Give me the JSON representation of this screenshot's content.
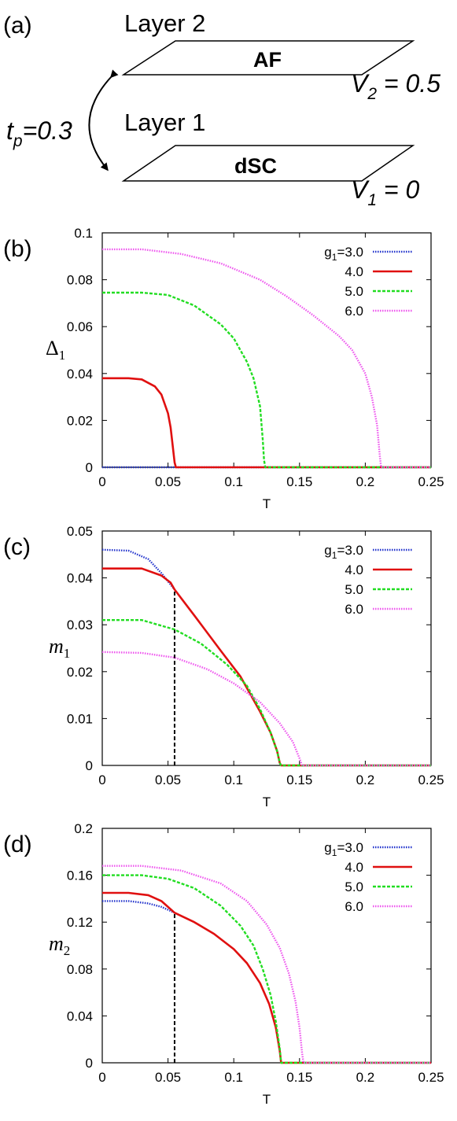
{
  "panel_a": {
    "panel_label": "(a)",
    "layer2_title": "Layer 2",
    "layer2_phase": "AF",
    "v2_var": "V",
    "v2_sub": "2",
    "v2_value": " = 0.5",
    "layer1_title": "Layer 1",
    "layer1_phase": "dSC",
    "v1_var": "V",
    "v1_sub": "1",
    "v1_value": " = 0",
    "tp_var": "t",
    "tp_sub": "p",
    "tp_value": "=0.3"
  },
  "colors": {
    "g3": "#2233cc",
    "g4": "#e01010",
    "g5": "#22dd22",
    "g6": "#ee55ee",
    "axis": "#000000",
    "dashed": "#000000"
  },
  "chart_data": [
    {
      "panel_label": "(b)",
      "type": "line",
      "ylabel_main": "Δ",
      "ylabel_sub": "1",
      "ylabel_style": "upright",
      "xlabel": "T",
      "xlim": [
        0,
        0.25
      ],
      "ylim": [
        0,
        0.1
      ],
      "xticks": [
        "0",
        "0.05",
        "0.1",
        "0.15",
        "0.2",
        "0.25"
      ],
      "yticks": [
        "0",
        "0.02",
        "0.04",
        "0.06",
        "0.08",
        "0.1"
      ],
      "legend_position": "top-right",
      "legend_prefix": "g",
      "legend_prefix_sub": "1",
      "dashed_line_x": null,
      "series": [
        {
          "name": "=3.0",
          "color_key": "g3",
          "style": "dotted",
          "points": [
            [
              0,
              0
            ],
            [
              0.25,
              0
            ]
          ]
        },
        {
          "name": "4.0",
          "color_key": "g4",
          "style": "solid",
          "points": [
            [
              0,
              0.038
            ],
            [
              0.02,
              0.038
            ],
            [
              0.03,
              0.0375
            ],
            [
              0.04,
              0.0345
            ],
            [
              0.045,
              0.031
            ],
            [
              0.05,
              0.023
            ],
            [
              0.052,
              0.017
            ],
            [
              0.054,
              0.007
            ],
            [
              0.055,
              0.002
            ],
            [
              0.056,
              0
            ],
            [
              0.25,
              0
            ]
          ]
        },
        {
          "name": "5.0",
          "color_key": "g5",
          "style": "dashed",
          "points": [
            [
              0,
              0.0745
            ],
            [
              0.03,
              0.0745
            ],
            [
              0.05,
              0.0735
            ],
            [
              0.07,
              0.069
            ],
            [
              0.09,
              0.061
            ],
            [
              0.1,
              0.055
            ],
            [
              0.11,
              0.045
            ],
            [
              0.115,
              0.038
            ],
            [
              0.12,
              0.026
            ],
            [
              0.122,
              0.012
            ],
            [
              0.123,
              0.003
            ],
            [
              0.124,
              0
            ],
            [
              0.25,
              0
            ]
          ]
        },
        {
          "name": "6.0",
          "color_key": "g6",
          "style": "dotted",
          "points": [
            [
              0,
              0.093
            ],
            [
              0.03,
              0.093
            ],
            [
              0.06,
              0.091
            ],
            [
              0.09,
              0.087
            ],
            [
              0.12,
              0.08
            ],
            [
              0.14,
              0.073
            ],
            [
              0.16,
              0.065
            ],
            [
              0.18,
              0.056
            ],
            [
              0.19,
              0.05
            ],
            [
              0.2,
              0.04
            ],
            [
              0.205,
              0.03
            ],
            [
              0.209,
              0.018
            ],
            [
              0.211,
              0.005
            ],
            [
              0.212,
              0
            ],
            [
              0.25,
              0
            ]
          ]
        }
      ]
    },
    {
      "panel_label": "(c)",
      "type": "line",
      "ylabel_main": "m",
      "ylabel_sub": "1",
      "ylabel_style": "italic",
      "xlabel": "T",
      "xlim": [
        0,
        0.25
      ],
      "ylim": [
        0,
        0.05
      ],
      "xticks": [
        "0",
        "0.05",
        "0.1",
        "0.15",
        "0.2",
        "0.25"
      ],
      "yticks": [
        "0",
        "0.01",
        "0.02",
        "0.03",
        "0.04",
        "0.05"
      ],
      "legend_position": "top-right",
      "legend_prefix": "g",
      "legend_prefix_sub": "1",
      "dashed_line_x": 0.055,
      "series": [
        {
          "name": "=3.0",
          "color_key": "g3",
          "style": "dotted",
          "points": [
            [
              0,
              0.046
            ],
            [
              0.02,
              0.0458
            ],
            [
              0.035,
              0.044
            ],
            [
              0.045,
              0.041
            ],
            [
              0.055,
              0.0375
            ]
          ]
        },
        {
          "name": "4.0",
          "color_key": "g4",
          "style": "solid",
          "points": [
            [
              0,
              0.042
            ],
            [
              0.03,
              0.042
            ],
            [
              0.045,
              0.0405
            ],
            [
              0.052,
              0.039
            ],
            [
              0.055,
              0.0375
            ],
            [
              0.07,
              0.032
            ],
            [
              0.09,
              0.0245
            ],
            [
              0.105,
              0.019
            ],
            [
              0.12,
              0.0115
            ],
            [
              0.128,
              0.007
            ],
            [
              0.133,
              0.003
            ],
            [
              0.135,
              0.0005
            ],
            [
              0.136,
              0
            ],
            [
              0.25,
              0
            ]
          ]
        },
        {
          "name": "5.0",
          "color_key": "g5",
          "style": "dashed",
          "points": [
            [
              0,
              0.031
            ],
            [
              0.03,
              0.031
            ],
            [
              0.055,
              0.029
            ],
            [
              0.075,
              0.026
            ],
            [
              0.095,
              0.0215
            ],
            [
              0.11,
              0.017
            ],
            [
              0.12,
              0.012
            ],
            [
              0.128,
              0.007
            ],
            [
              0.133,
              0.003
            ],
            [
              0.135,
              0.0005
            ],
            [
              0.136,
              0
            ],
            [
              0.25,
              0
            ]
          ]
        },
        {
          "name": "6.0",
          "color_key": "g6",
          "style": "dotted",
          "points": [
            [
              0,
              0.0242
            ],
            [
              0.03,
              0.024
            ],
            [
              0.055,
              0.023
            ],
            [
              0.08,
              0.0205
            ],
            [
              0.1,
              0.0175
            ],
            [
              0.12,
              0.0135
            ],
            [
              0.135,
              0.009
            ],
            [
              0.145,
              0.005
            ],
            [
              0.15,
              0.0015
            ],
            [
              0.152,
              0
            ],
            [
              0.25,
              0
            ]
          ]
        }
      ]
    },
    {
      "panel_label": "(d)",
      "type": "line",
      "ylabel_main": "m",
      "ylabel_sub": "2",
      "ylabel_style": "italic",
      "xlabel": "T",
      "xlim": [
        0,
        0.25
      ],
      "ylim": [
        0,
        0.2
      ],
      "xticks": [
        "0",
        "0.05",
        "0.1",
        "0.15",
        "0.2",
        "0.25"
      ],
      "yticks": [
        "0",
        "0.04",
        "0.08",
        "0.12",
        "0.16",
        "0.2"
      ],
      "legend_position": "top-right",
      "legend_prefix": "g",
      "legend_prefix_sub": "1",
      "dashed_line_x": 0.055,
      "series": [
        {
          "name": "=3.0",
          "color_key": "g3",
          "style": "dotted",
          "points": [
            [
              0,
              0.138
            ],
            [
              0.02,
              0.138
            ],
            [
              0.035,
              0.136
            ],
            [
              0.045,
              0.133
            ],
            [
              0.055,
              0.128
            ]
          ]
        },
        {
          "name": "4.0",
          "color_key": "g4",
          "style": "solid",
          "points": [
            [
              0,
              0.145
            ],
            [
              0.02,
              0.145
            ],
            [
              0.035,
              0.143
            ],
            [
              0.045,
              0.138
            ],
            [
              0.055,
              0.128
            ],
            [
              0.07,
              0.12
            ],
            [
              0.085,
              0.11
            ],
            [
              0.1,
              0.097
            ],
            [
              0.11,
              0.085
            ],
            [
              0.12,
              0.068
            ],
            [
              0.127,
              0.05
            ],
            [
              0.132,
              0.03
            ],
            [
              0.135,
              0.01
            ],
            [
              0.136,
              0
            ],
            [
              0.25,
              0
            ]
          ]
        },
        {
          "name": "5.0",
          "color_key": "g5",
          "style": "dashed",
          "points": [
            [
              0,
              0.16
            ],
            [
              0.03,
              0.16
            ],
            [
              0.05,
              0.157
            ],
            [
              0.07,
              0.149
            ],
            [
              0.09,
              0.134
            ],
            [
              0.105,
              0.117
            ],
            [
              0.115,
              0.1
            ],
            [
              0.122,
              0.08
            ],
            [
              0.128,
              0.058
            ],
            [
              0.132,
              0.035
            ],
            [
              0.135,
              0.012
            ],
            [
              0.136,
              0
            ],
            [
              0.25,
              0
            ]
          ]
        },
        {
          "name": "6.0",
          "color_key": "g6",
          "style": "dotted",
          "points": [
            [
              0,
              0.168
            ],
            [
              0.03,
              0.168
            ],
            [
              0.06,
              0.164
            ],
            [
              0.09,
              0.153
            ],
            [
              0.11,
              0.138
            ],
            [
              0.125,
              0.118
            ],
            [
              0.135,
              0.098
            ],
            [
              0.142,
              0.076
            ],
            [
              0.147,
              0.052
            ],
            [
              0.15,
              0.03
            ],
            [
              0.152,
              0.008
            ],
            [
              0.153,
              0
            ],
            [
              0.25,
              0
            ]
          ]
        }
      ]
    }
  ]
}
